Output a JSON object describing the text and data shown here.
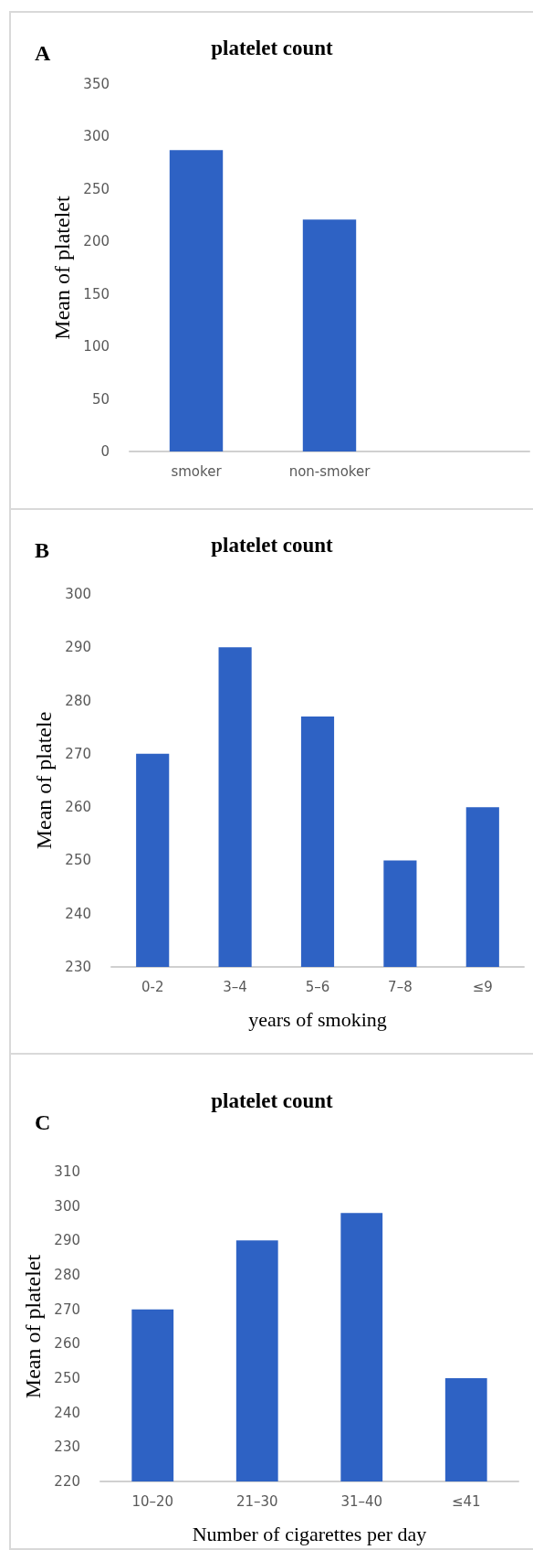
{
  "chart_data": [
    {
      "type": "bar",
      "title": "platelet count",
      "ylabel": "Mean of platelet",
      "annotations": [
        "A"
      ],
      "categories": [
        "smoker",
        "non-smoker",
        null
      ],
      "values": [
        287,
        221,
        null
      ],
      "color": "#2e62c4",
      "ylim": [
        0,
        350
      ],
      "yticks": [
        0,
        50,
        100,
        150,
        200,
        250,
        300,
        350
      ]
    },
    {
      "type": "bar",
      "title": "platelet count",
      "ylabel": "Mean of platele",
      "xlabel": "years of smoking",
      "annotations": [
        "B"
      ],
      "categories": [
        "0-2",
        "3–4",
        "5–6",
        "7–8",
        "≤9"
      ],
      "values": [
        270,
        290,
        277,
        250,
        260
      ],
      "color": "#2e62c4",
      "ylim": [
        230,
        300
      ],
      "yticks": [
        230,
        240,
        250,
        260,
        270,
        280,
        290,
        300
      ]
    },
    {
      "type": "bar",
      "title": "platelet count",
      "ylabel": "Mean of platelet",
      "xlabel": "Number of cigarettes per day",
      "annotations": [
        "C"
      ],
      "categories": [
        "10–20",
        "21–30",
        "31–40",
        "≤41"
      ],
      "values": [
        270,
        290,
        298,
        250
      ],
      "color": "#2e62c4",
      "ylim": [
        220,
        310
      ],
      "yticks": [
        220,
        230,
        240,
        250,
        260,
        270,
        280,
        290,
        300,
        310
      ]
    }
  ]
}
